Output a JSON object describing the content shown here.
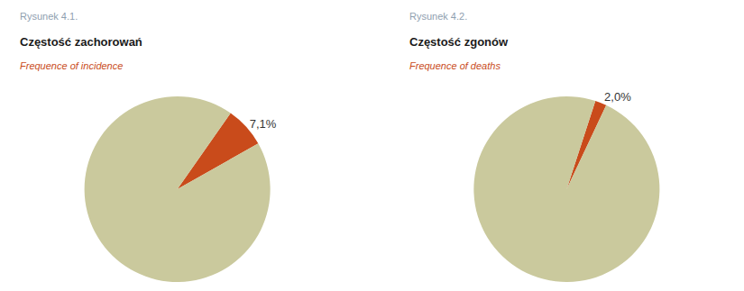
{
  "chart_data": [
    {
      "type": "pie",
      "annotations": [
        "Rysunek 4.1."
      ],
      "title": "Częstość zachorowań",
      "subtitle": "Frequence of incidence",
      "values": [
        7.1,
        92.9
      ],
      "value_labels": [
        "7,1%",
        null
      ],
      "colors": [
        "#c94b1b",
        "#cac99d"
      ]
    },
    {
      "type": "pie",
      "annotations": [
        "Rysunek 4.2."
      ],
      "title": "Częstość zgonów",
      "subtitle": "Frequence of deaths",
      "values": [
        2.0,
        98.0
      ],
      "value_labels": [
        "2,0%",
        null
      ],
      "colors": [
        "#c94b1b",
        "#cac99d"
      ]
    }
  ]
}
